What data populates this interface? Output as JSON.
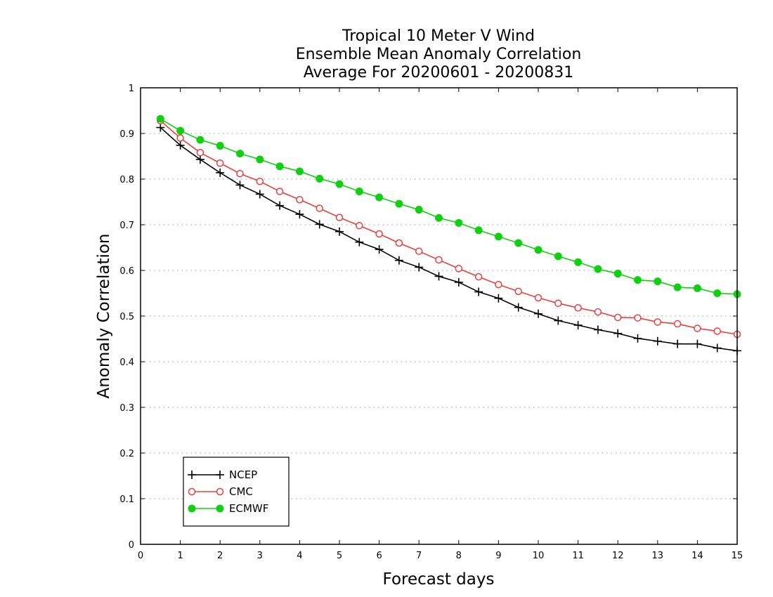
{
  "chart_data": {
    "type": "line",
    "title_lines": [
      "Tropical 10 Meter V Wind",
      "Ensemble Mean Anomaly Correlation",
      "Average For 20200601 - 20200831"
    ],
    "xlabel": "Forecast days",
    "ylabel": "Anomaly Correlation",
    "xlim": [
      0,
      15
    ],
    "ylim": [
      0,
      1
    ],
    "xticks": [
      "0",
      "1",
      "2",
      "3",
      "4",
      "5",
      "6",
      "7",
      "8",
      "9",
      "10",
      "11",
      "12",
      "13",
      "14",
      "15"
    ],
    "yticks": [
      "0",
      "0.1",
      "0.2",
      "0.3",
      "0.4",
      "0.5",
      "0.6",
      "0.7",
      "0.8",
      "0.9",
      "1"
    ],
    "grid": true,
    "legend_position": "bottom-left",
    "x": [
      0.5,
      1,
      1.5,
      2,
      2.5,
      3,
      3.5,
      4,
      4.5,
      5,
      5.5,
      6,
      6.5,
      7,
      7.5,
      8,
      8.5,
      9,
      9.5,
      10,
      10.5,
      11,
      11.5,
      12,
      12.5,
      13,
      13.5,
      14,
      14.5,
      15
    ],
    "series": [
      {
        "name": "NCEP",
        "color": "#000000",
        "marker": "plus",
        "values": [
          0.913,
          0.874,
          0.843,
          0.814,
          0.787,
          0.767,
          0.742,
          0.723,
          0.701,
          0.685,
          0.662,
          0.646,
          0.622,
          0.607,
          0.587,
          0.574,
          0.553,
          0.539,
          0.519,
          0.505,
          0.49,
          0.48,
          0.47,
          0.462,
          0.451,
          0.445,
          0.439,
          0.439,
          0.43,
          0.424
        ]
      },
      {
        "name": "CMC",
        "color": "#e8403c",
        "marker": "open-circle",
        "values": [
          0.928,
          0.89,
          0.858,
          0.835,
          0.812,
          0.795,
          0.773,
          0.755,
          0.736,
          0.716,
          0.698,
          0.68,
          0.66,
          0.642,
          0.623,
          0.604,
          0.586,
          0.569,
          0.554,
          0.54,
          0.528,
          0.518,
          0.509,
          0.497,
          0.496,
          0.487,
          0.483,
          0.473,
          0.467,
          0.46
        ]
      },
      {
        "name": "ECMWF",
        "color": "#11d011",
        "marker": "filled-circle",
        "values": [
          0.932,
          0.906,
          0.886,
          0.873,
          0.856,
          0.843,
          0.828,
          0.817,
          0.801,
          0.789,
          0.773,
          0.76,
          0.746,
          0.733,
          0.715,
          0.704,
          0.688,
          0.674,
          0.66,
          0.645,
          0.631,
          0.618,
          0.603,
          0.593,
          0.579,
          0.576,
          0.563,
          0.561,
          0.55,
          0.548
        ]
      }
    ]
  }
}
